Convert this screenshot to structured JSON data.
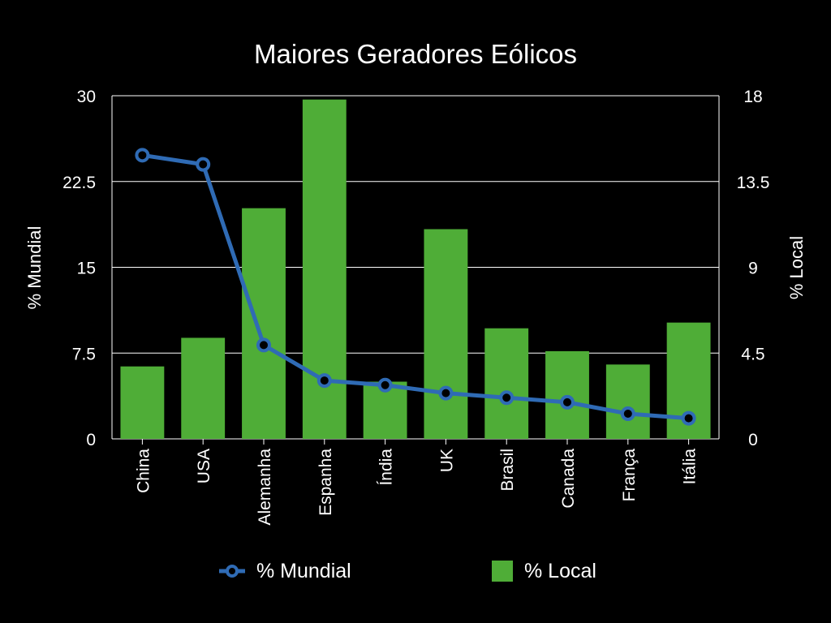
{
  "chart_data": {
    "type": "bar",
    "title": "Maiores Geradores Eólicos",
    "categories": [
      "China",
      "USA",
      "Alemanha",
      "Espanha",
      "Índia",
      "UK",
      "Brasil",
      "Canada",
      "França",
      "Itália"
    ],
    "series": [
      {
        "name": "% Local",
        "type": "bar",
        "axis": "right",
        "color": "#4fad37",
        "values": [
          3.8,
          5.3,
          12.1,
          17.8,
          3.0,
          11.0,
          5.8,
          4.6,
          3.9,
          6.1
        ]
      },
      {
        "name": "% Mundial",
        "type": "line",
        "axis": "left",
        "color": "#2f6bb5",
        "values": [
          24.8,
          24.0,
          8.2,
          5.1,
          4.7,
          4.0,
          3.6,
          3.2,
          2.2,
          1.8
        ]
      }
    ],
    "left_axis": {
      "label": "% Mundial",
      "ylim": [
        0,
        30
      ],
      "ticks": [
        "0",
        "7.5",
        "15",
        "22.5",
        "30"
      ]
    },
    "right_axis": {
      "label": "% Local",
      "ylim": [
        0,
        18
      ],
      "ticks": [
        "0",
        "4.5",
        "9",
        "13.5",
        "18"
      ]
    },
    "grid": true,
    "legend": {
      "position": "bottom",
      "items": [
        "% Mundial",
        "% Local"
      ]
    }
  },
  "colors": {
    "background": "#000000",
    "bar": "#4fad37",
    "line": "#2f6bb5",
    "grid": "#ffffff",
    "text": "#ffffff"
  }
}
